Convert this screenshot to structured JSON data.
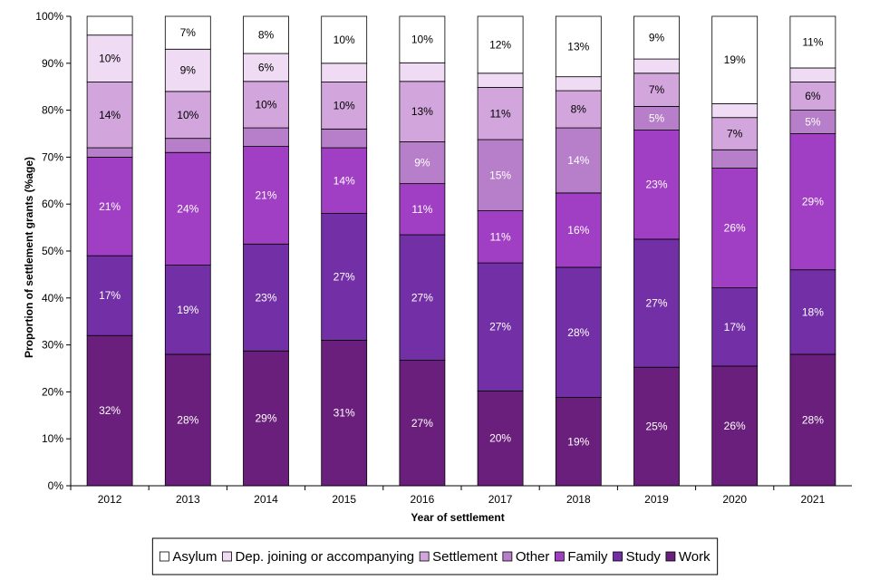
{
  "chart_data": {
    "type": "bar",
    "stacked": true,
    "title": "",
    "xlabel": "Year of settlement",
    "ylabel": "Proportion of settlement grants (%age)",
    "ylim": [
      0,
      100
    ],
    "yticks": [
      "0%",
      "10%",
      "20%",
      "30%",
      "40%",
      "50%",
      "60%",
      "70%",
      "80%",
      "90%",
      "100%"
    ],
    "categories": [
      "2012",
      "2013",
      "2014",
      "2015",
      "2016",
      "2017",
      "2018",
      "2019",
      "2020",
      "2021"
    ],
    "series": [
      {
        "name": "Work",
        "color": "#6a1f7c",
        "label_color": "#ffffff",
        "values": [
          32,
          28,
          29,
          31,
          27,
          20,
          19,
          25,
          26,
          28
        ],
        "labels": [
          "32%",
          "28%",
          "29%",
          "31%",
          "27%",
          "20%",
          "19%",
          "25%",
          "26%",
          "28%"
        ]
      },
      {
        "name": "Study",
        "color": "#7330a6",
        "label_color": "#ffffff",
        "values": [
          17,
          19,
          23,
          27,
          27,
          27,
          28,
          27,
          17,
          18
        ],
        "labels": [
          "17%",
          "19%",
          "23%",
          "27%",
          "27%",
          "27%",
          "28%",
          "27%",
          "17%",
          "18%"
        ]
      },
      {
        "name": "Family",
        "color": "#a13fc4",
        "label_color": "#ffffff",
        "values": [
          21,
          24,
          21,
          14,
          11,
          11,
          16,
          23,
          26,
          29
        ],
        "labels": [
          "21%",
          "24%",
          "21%",
          "14%",
          "11%",
          "11%",
          "16%",
          "23%",
          "26%",
          "29%"
        ]
      },
      {
        "name": "Other",
        "color": "#b77ec9",
        "label_color": "#ffffff",
        "values": [
          2,
          3,
          4,
          4,
          9,
          15,
          14,
          5,
          4,
          5
        ],
        "labels": [
          "",
          "",
          "",
          "",
          "9%",
          "15%",
          "14%",
          "5%",
          "",
          "5%"
        ]
      },
      {
        "name": "Settlement",
        "color": "#d2a6dc",
        "label_color": "#000000",
        "values": [
          14,
          10,
          10,
          10,
          13,
          11,
          8,
          7,
          7,
          6
        ],
        "labels": [
          "14%",
          "10%",
          "10%",
          "10%",
          "13%",
          "11%",
          "8%",
          "7%",
          "7%",
          "6%"
        ]
      },
      {
        "name": "Dep. joining or accompanying",
        "color": "#f0dbf4",
        "label_color": "#000000",
        "values": [
          10,
          9,
          6,
          4,
          4,
          3,
          3,
          3,
          3,
          3
        ],
        "labels": [
          "10%",
          "9%",
          "6%",
          "",
          "",
          "",
          "",
          "",
          "",
          ""
        ]
      },
      {
        "name": "Asylum",
        "color": "#ffffff",
        "label_color": "#000000",
        "values": [
          4,
          7,
          8,
          10,
          10,
          12,
          13,
          9,
          19,
          11
        ],
        "labels": [
          "",
          "7%",
          "8%",
          "10%",
          "10%",
          "12%",
          "13%",
          "9%",
          "19%",
          "11%"
        ]
      }
    ],
    "legend": {
      "position": "bottom",
      "order": [
        "Asylum",
        "Dep. joining or accompanying",
        "Settlement",
        "Other",
        "Family",
        "Study",
        "Work"
      ]
    }
  }
}
